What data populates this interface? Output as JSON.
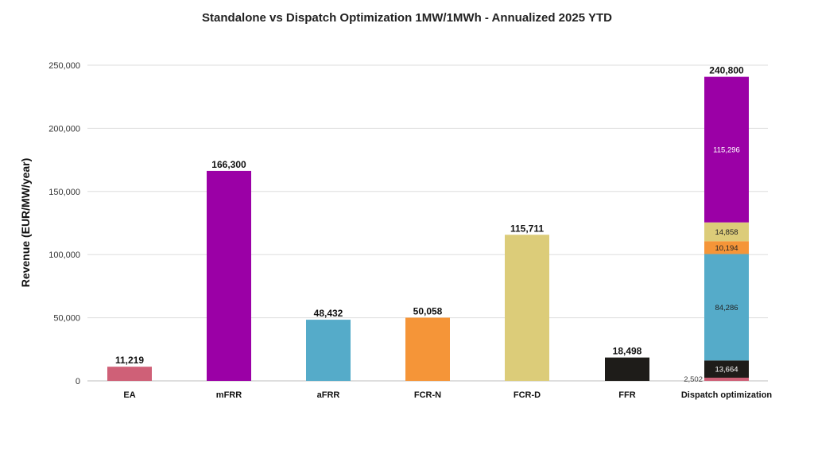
{
  "chart_data": {
    "type": "bar",
    "title": "Standalone vs Dispatch Optimization 1MW/1MWh - Annualized 2025 YTD",
    "ylabel": "Revenue (EUR/MW/year)",
    "xlabel": "",
    "ylim": [
      0,
      250000
    ],
    "yticks": [
      0,
      50000,
      100000,
      150000,
      200000,
      250000
    ],
    "ytick_labels": [
      "0",
      "50,000",
      "100,000",
      "150,000",
      "200,000",
      "250,000"
    ],
    "grid": true,
    "categories": [
      "EA",
      "mFRR",
      "aFRR",
      "FCR-N",
      "FCR-D",
      "FFR"
    ],
    "values": [
      11219,
      166300,
      48432,
      50058,
      115711,
      18498
    ],
    "value_labels": [
      "11,219",
      "166,300",
      "48,432",
      "50,058",
      "115,711",
      "18,498"
    ],
    "colors": [
      "#cf6077",
      "#9b00a6",
      "#55abc9",
      "#f59538",
      "#dccc79",
      "#1e1c19"
    ],
    "stacked_bar": {
      "category": "Dispatch optimization",
      "total": 240800,
      "total_label": "240,800",
      "segments": [
        {
          "value": 2502,
          "label": "2,502",
          "color": "#cf6077"
        },
        {
          "value": 13664,
          "label": "13,664",
          "color": "#1e1c19"
        },
        {
          "value": 84286,
          "label": "84,286",
          "color": "#55abc9"
        },
        {
          "value": 10194,
          "label": "10,194",
          "color": "#f59538"
        },
        {
          "value": 14858,
          "label": "14,858",
          "color": "#dccc79"
        },
        {
          "value": 115296,
          "label": "115,296",
          "color": "#9b00a6"
        }
      ]
    }
  }
}
